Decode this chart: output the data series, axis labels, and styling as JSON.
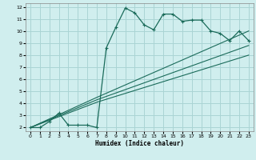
{
  "xlabel": "Humidex (Indice chaleur)",
  "xlim": [
    -0.5,
    23.5
  ],
  "ylim": [
    1.7,
    12.3
  ],
  "xticks": [
    0,
    1,
    2,
    3,
    4,
    5,
    6,
    7,
    8,
    9,
    10,
    11,
    12,
    13,
    14,
    15,
    16,
    17,
    18,
    19,
    20,
    21,
    22,
    23
  ],
  "yticks": [
    2,
    3,
    4,
    5,
    6,
    7,
    8,
    9,
    10,
    11,
    12
  ],
  "bg_color": "#d0eeee",
  "grid_color": "#aad4d4",
  "line_color": "#1a6b5a",
  "line1_x": [
    0,
    1,
    2,
    3,
    4,
    5,
    6,
    7,
    8,
    9,
    10,
    11,
    12,
    13,
    14,
    15,
    16,
    17,
    18,
    19,
    20,
    21,
    22,
    23
  ],
  "line1_y": [
    2.0,
    2.0,
    2.5,
    3.2,
    2.2,
    2.2,
    2.2,
    2.0,
    8.6,
    10.3,
    11.9,
    11.5,
    10.5,
    10.1,
    11.4,
    11.4,
    10.8,
    10.9,
    10.9,
    10.0,
    9.8,
    9.2,
    10.0,
    9.2
  ],
  "line2_x": [
    0,
    7,
    23
  ],
  "line2_y": [
    2.0,
    4.5,
    10.0
  ],
  "line3_x": [
    0,
    7,
    23
  ],
  "line3_y": [
    2.0,
    4.3,
    8.8
  ],
  "line4_x": [
    0,
    7,
    23
  ],
  "line4_y": [
    2.0,
    4.1,
    8.0
  ]
}
